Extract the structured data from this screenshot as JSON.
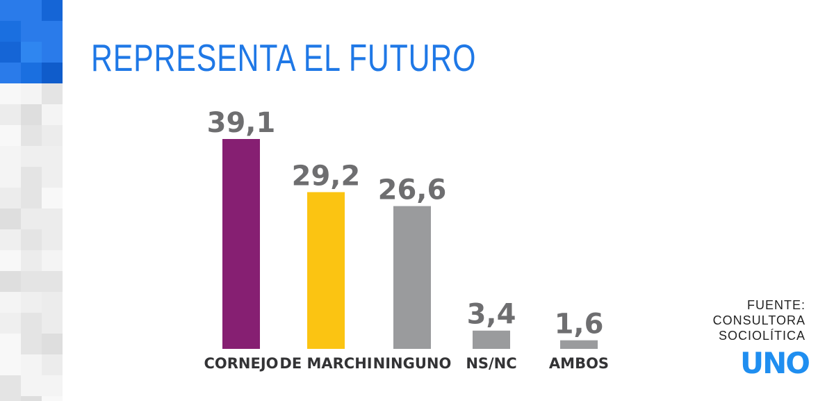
{
  "title": "REPRESENTA EL FUTURO",
  "source": {
    "line1": "FUENTE:",
    "line2": "CONSULTORA",
    "line3": "SOCIOLÍTICA"
  },
  "logo": {
    "text": "UNO"
  },
  "colors": {
    "title": "#1f78e6",
    "logo": "#1f8ef0",
    "value_labels": "#6e6e70"
  },
  "chart_data": {
    "type": "bar",
    "title": "REPRESENTA EL FUTURO",
    "categories": [
      "CORNEJO",
      "DE MARCHI",
      "NINGUNO",
      "NS/NC",
      "AMBOS"
    ],
    "values": [
      39.1,
      29.2,
      26.6,
      3.4,
      1.6
    ],
    "value_labels": [
      "39,1",
      "29,2",
      "26,6",
      "3,4",
      "1,6"
    ],
    "colors": [
      "#861f72",
      "#fbc412",
      "#9a9b9d",
      "#9a9b9d",
      "#9a9b9d"
    ],
    "xlabel": "",
    "ylabel": "",
    "grid": false
  }
}
